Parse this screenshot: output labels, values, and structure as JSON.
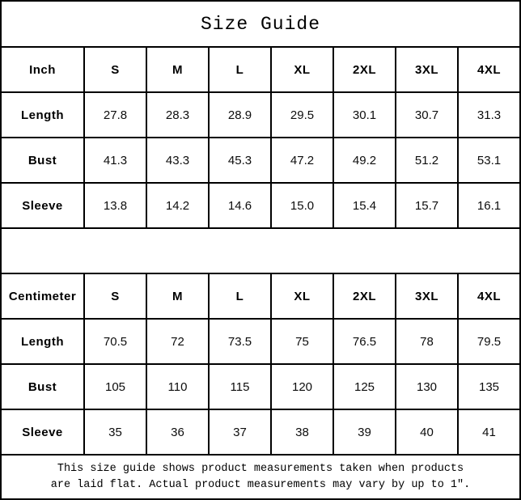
{
  "title": "Size Guide",
  "colors": {
    "border": "#000000",
    "background": "#ffffff",
    "text": "#000000"
  },
  "inch_table": {
    "unit_label": "Inch",
    "sizes": [
      "S",
      "M",
      "L",
      "XL",
      "2XL",
      "3XL",
      "4XL"
    ],
    "rows": [
      {
        "label": "Length",
        "values": [
          "27.8",
          "28.3",
          "28.9",
          "29.5",
          "30.1",
          "30.7",
          "31.3"
        ]
      },
      {
        "label": "Bust",
        "values": [
          "41.3",
          "43.3",
          "45.3",
          "47.2",
          "49.2",
          "51.2",
          "53.1"
        ]
      },
      {
        "label": "Sleeve",
        "values": [
          "13.8",
          "14.2",
          "14.6",
          "15.0",
          "15.4",
          "15.7",
          "16.1"
        ]
      }
    ]
  },
  "cm_table": {
    "unit_label": "Centimeter",
    "sizes": [
      "S",
      "M",
      "L",
      "XL",
      "2XL",
      "3XL",
      "4XL"
    ],
    "rows": [
      {
        "label": "Length",
        "values": [
          "70.5",
          "72",
          "73.5",
          "75",
          "76.5",
          "78",
          "79.5"
        ]
      },
      {
        "label": "Bust",
        "values": [
          "105",
          "110",
          "115",
          "120",
          "125",
          "130",
          "135"
        ]
      },
      {
        "label": "Sleeve",
        "values": [
          "35",
          "36",
          "37",
          "38",
          "39",
          "40",
          "41"
        ]
      }
    ]
  },
  "footer": {
    "line1": "This size guide shows product measurements taken when products",
    "line2": "are laid flat. Actual product measurements may vary by up to 1″."
  },
  "chart_data": [
    {
      "type": "table",
      "title": "Size Guide (Inch)",
      "columns": [
        "Inch",
        "S",
        "M",
        "L",
        "XL",
        "2XL",
        "3XL",
        "4XL"
      ],
      "rows": [
        [
          "Length",
          27.8,
          28.3,
          28.9,
          29.5,
          30.1,
          30.7,
          31.3
        ],
        [
          "Bust",
          41.3,
          43.3,
          45.3,
          47.2,
          49.2,
          51.2,
          53.1
        ],
        [
          "Sleeve",
          13.8,
          14.2,
          14.6,
          15.0,
          15.4,
          15.7,
          16.1
        ]
      ]
    },
    {
      "type": "table",
      "title": "Size Guide (Centimeter)",
      "columns": [
        "Centimeter",
        "S",
        "M",
        "L",
        "XL",
        "2XL",
        "3XL",
        "4XL"
      ],
      "rows": [
        [
          "Length",
          70.5,
          72,
          73.5,
          75,
          76.5,
          78,
          79.5
        ],
        [
          "Bust",
          105,
          110,
          115,
          120,
          125,
          130,
          135
        ],
        [
          "Sleeve",
          35,
          36,
          37,
          38,
          39,
          40,
          41
        ]
      ]
    }
  ]
}
